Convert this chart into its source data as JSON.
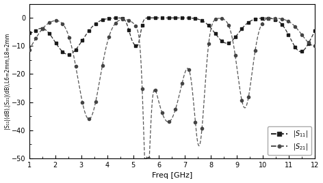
{
  "xlabel": "Freq [GHz]",
  "ylabel": "|S₁₁|(dB),|S₂₁|(dB),L6=2mm,L8=2mm",
  "xlim": [
    1,
    12
  ],
  "ylim": [
    -50,
    5
  ],
  "yticks": [
    0,
    -10,
    -20,
    -30,
    -40,
    -50
  ],
  "xticks": [
    1,
    2,
    3,
    4,
    5,
    6,
    7,
    8,
    9,
    10,
    11,
    12
  ],
  "figsize": [
    4.72,
    2.68
  ],
  "dpi": 100,
  "n_markers": 44
}
